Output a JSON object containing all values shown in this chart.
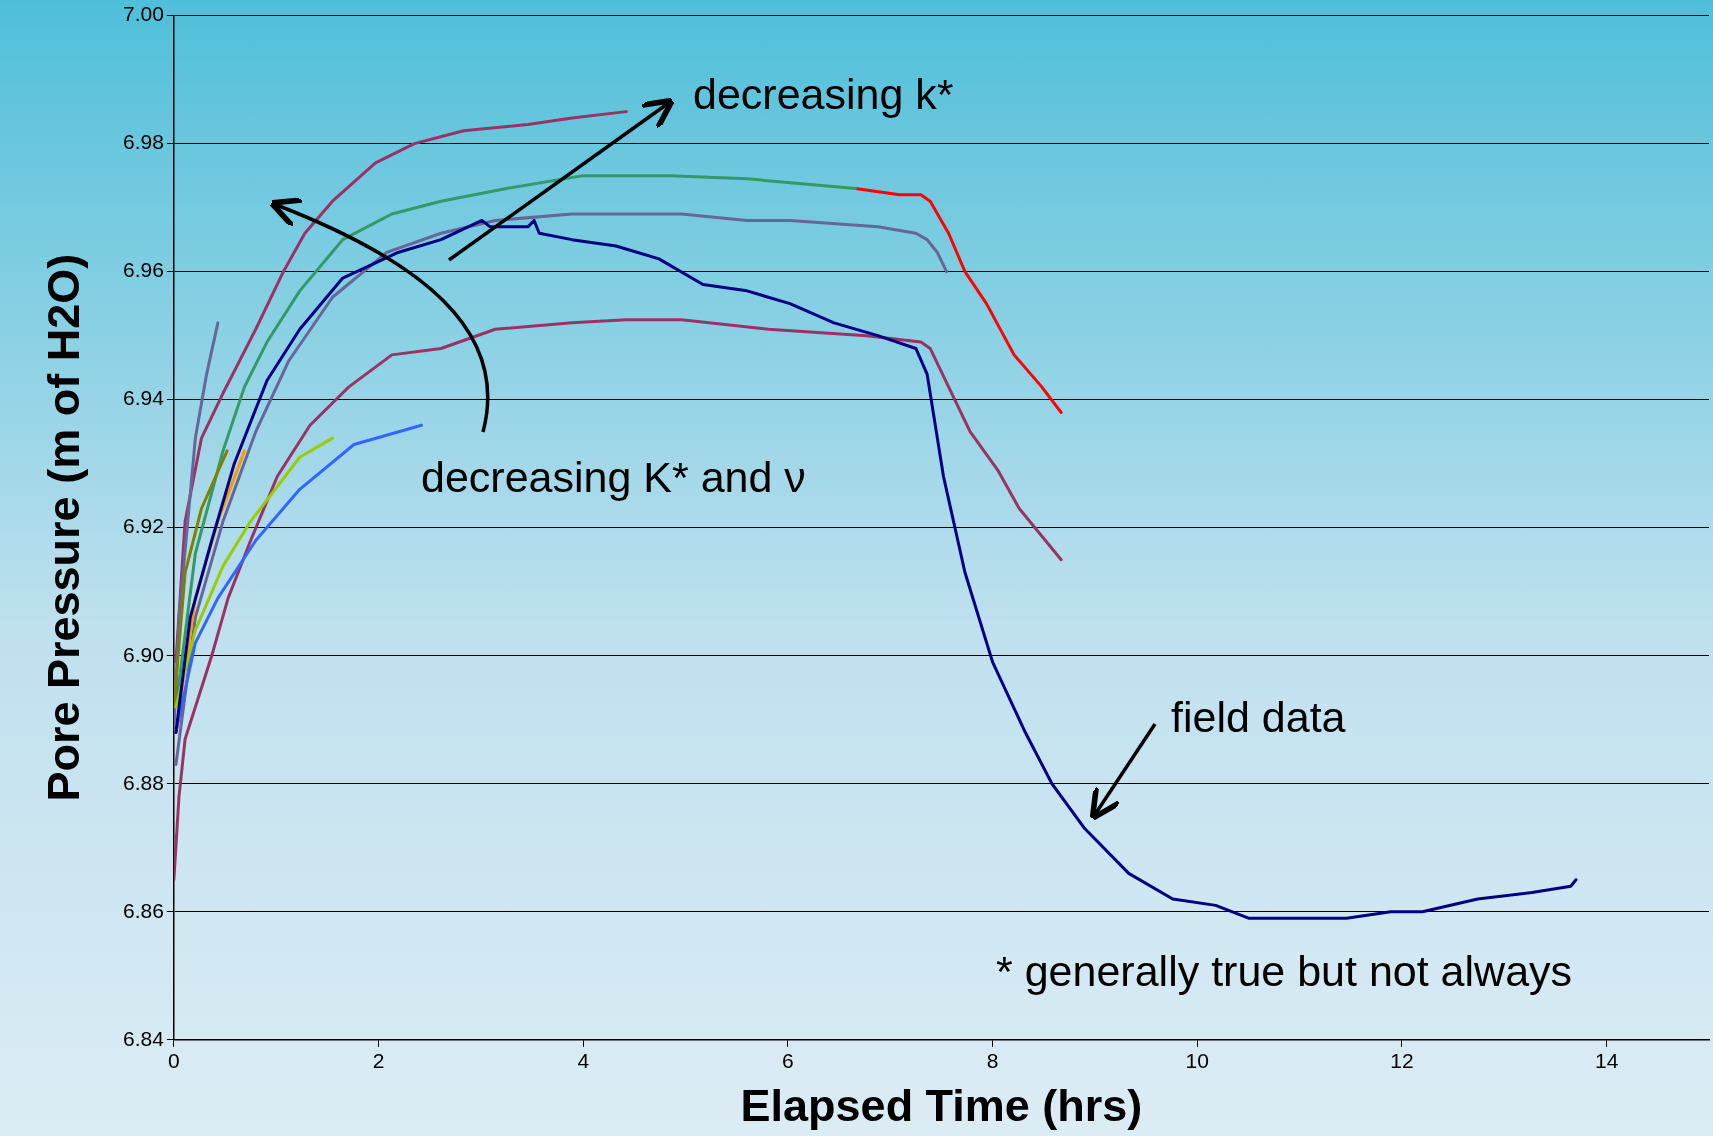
{
  "chart_data": {
    "type": "line",
    "xlabel": "Elapsed Time (hrs)",
    "ylabel": "Pore Pressure (m of H2O)",
    "xlim": [
      0,
      15
    ],
    "xticks": [
      0,
      2,
      4,
      6,
      8,
      10,
      12,
      14
    ],
    "ylim": [
      6.84,
      7.0
    ],
    "yticks": [
      {
        "value": 6.84,
        "label": "6.84"
      },
      {
        "value": 6.86,
        "label": "6.86"
      },
      {
        "value": 6.88,
        "label": "6.88"
      },
      {
        "value": 6.9,
        "label": "6.90"
      },
      {
        "value": 6.92,
        "label": "6.92"
      },
      {
        "value": 6.94,
        "label": "6.94"
      },
      {
        "value": 6.96,
        "label": "6.96"
      },
      {
        "value": 6.98,
        "label": "6.98"
      },
      {
        "value": 7.0,
        "label": "7.00"
      }
    ],
    "grid": "y",
    "legend": false,
    "marker": "none",
    "line_style": "solid",
    "annotations": [
      "decreasing k*",
      "decreasing K* and ν",
      "field data",
      "* generally true but not always"
    ],
    "series": [
      {
        "color": "#ff0000",
        "x": [
          6.66,
          7.09,
          7.3,
          7.39,
          7.57,
          7.73,
          7.94,
          8.21,
          8.48,
          8.67
        ],
        "values": [
          6.973,
          6.972,
          6.972,
          6.971,
          6.966,
          6.96,
          6.955,
          6.947,
          6.942,
          6.938
        ]
      },
      {
        "color": "#339966",
        "x": [
          0.02,
          0.21,
          0.48,
          0.69,
          0.91,
          1.23,
          1.65,
          2.13,
          2.61,
          3.25,
          4.0,
          4.85,
          5.6,
          6.66
        ],
        "values": [
          6.892,
          6.916,
          6.932,
          6.942,
          6.949,
          6.957,
          6.965,
          6.969,
          6.971,
          6.973,
          6.975,
          6.975,
          6.9745,
          6.973
        ]
      },
      {
        "color": "#993366",
        "x": [
          0.02,
          0.11,
          0.27,
          0.48,
          0.8,
          1.07,
          1.28,
          1.55,
          1.97,
          2.35,
          2.83,
          3.46,
          3.89,
          4.42
        ],
        "values": [
          6.899,
          6.921,
          6.934,
          6.941,
          6.951,
          6.96,
          6.966,
          6.971,
          6.977,
          6.98,
          6.982,
          6.983,
          6.984,
          6.985
        ]
      },
      {
        "color": "#666699",
        "x": [
          0.02,
          0.21,
          0.48,
          0.8,
          1.12,
          1.55,
          2.08,
          2.61,
          3.14,
          3.89,
          4.96,
          5.6,
          6.02,
          6.88,
          7.25,
          7.36,
          7.46,
          7.55
        ],
        "values": [
          6.883,
          6.906,
          6.921,
          6.935,
          6.946,
          6.956,
          6.963,
          6.966,
          6.968,
          6.969,
          6.969,
          6.968,
          6.968,
          6.967,
          6.966,
          6.965,
          6.963,
          6.96
        ]
      },
      {
        "color": "#993366",
        "x": [
          0,
          0.05,
          0.11,
          0.21,
          0.37,
          0.53,
          0.75,
          1.01,
          1.33,
          1.71,
          2.13,
          2.61,
          3.14,
          3.89,
          4.42,
          4.96,
          5.81,
          6.77,
          7.3,
          7.39,
          7.57,
          7.78,
          8.05,
          8.26,
          8.67
        ],
        "values": [
          6.865,
          6.878,
          6.887,
          6.892,
          6.9,
          6.909,
          6.918,
          6.928,
          6.936,
          6.942,
          6.947,
          6.948,
          6.951,
          6.952,
          6.9525,
          6.9525,
          6.951,
          6.95,
          6.949,
          6.948,
          6.942,
          6.935,
          6.929,
          6.923,
          6.915
        ]
      },
      {
        "color": "#666699",
        "x": [
          0,
          0.05,
          0.13,
          0.21,
          0.32,
          0.43
        ],
        "values": [
          6.888,
          6.906,
          6.92,
          6.934,
          6.944,
          6.952
        ]
      },
      {
        "color": "#808000",
        "x": [
          0,
          0.11,
          0.27,
          0.52
        ],
        "values": [
          6.892,
          6.913,
          6.923,
          6.932
        ]
      },
      {
        "color": "#ff9900",
        "x": [
          0.02,
          0.21,
          0.43,
          0.69
        ],
        "values": [
          6.888,
          6.909,
          6.921,
          6.932
        ]
      },
      {
        "color": "#99cc00",
        "x": [
          0.02,
          0.21,
          0.48,
          0.75,
          1.23,
          1.55
        ],
        "values": [
          6.892,
          6.904,
          6.914,
          6.921,
          6.931,
          6.934
        ]
      },
      {
        "color": "#3366ff",
        "x": [
          0.02,
          0.21,
          0.43,
          0.8,
          1.23,
          1.76,
          2.42
        ],
        "values": [
          6.888,
          6.902,
          6.909,
          6.918,
          6.926,
          6.933,
          6.936
        ]
      },
      {
        "color": "#000080",
        "x": [
          0.02,
          0.16,
          0.37,
          0.59,
          0.91,
          1.23,
          1.65,
          2.19,
          2.61,
          3.01,
          3.09,
          3.46,
          3.52,
          3.57,
          3.89,
          4.32,
          4.74,
          5.17,
          5.6,
          6.02,
          6.45,
          6.88,
          7.25,
          7.36,
          7.52,
          7.73,
          8.0,
          8.32,
          8.58,
          8.9,
          9.33,
          9.76,
          10.18,
          10.5,
          11.03,
          11.46,
          11.89,
          12.2,
          12.74,
          13.27,
          13.65,
          13.7
        ],
        "values": [
          6.888,
          6.906,
          6.918,
          6.93,
          6.943,
          6.951,
          6.959,
          6.963,
          6.965,
          6.968,
          6.967,
          6.967,
          6.968,
          6.966,
          6.965,
          6.964,
          6.962,
          6.958,
          6.957,
          6.955,
          6.952,
          6.95,
          6.948,
          6.944,
          6.928,
          6.913,
          6.899,
          6.888,
          6.88,
          6.873,
          6.866,
          6.862,
          6.861,
          6.859,
          6.859,
          6.859,
          6.86,
          6.86,
          6.862,
          6.863,
          6.864,
          6.865
        ]
      }
    ]
  }
}
